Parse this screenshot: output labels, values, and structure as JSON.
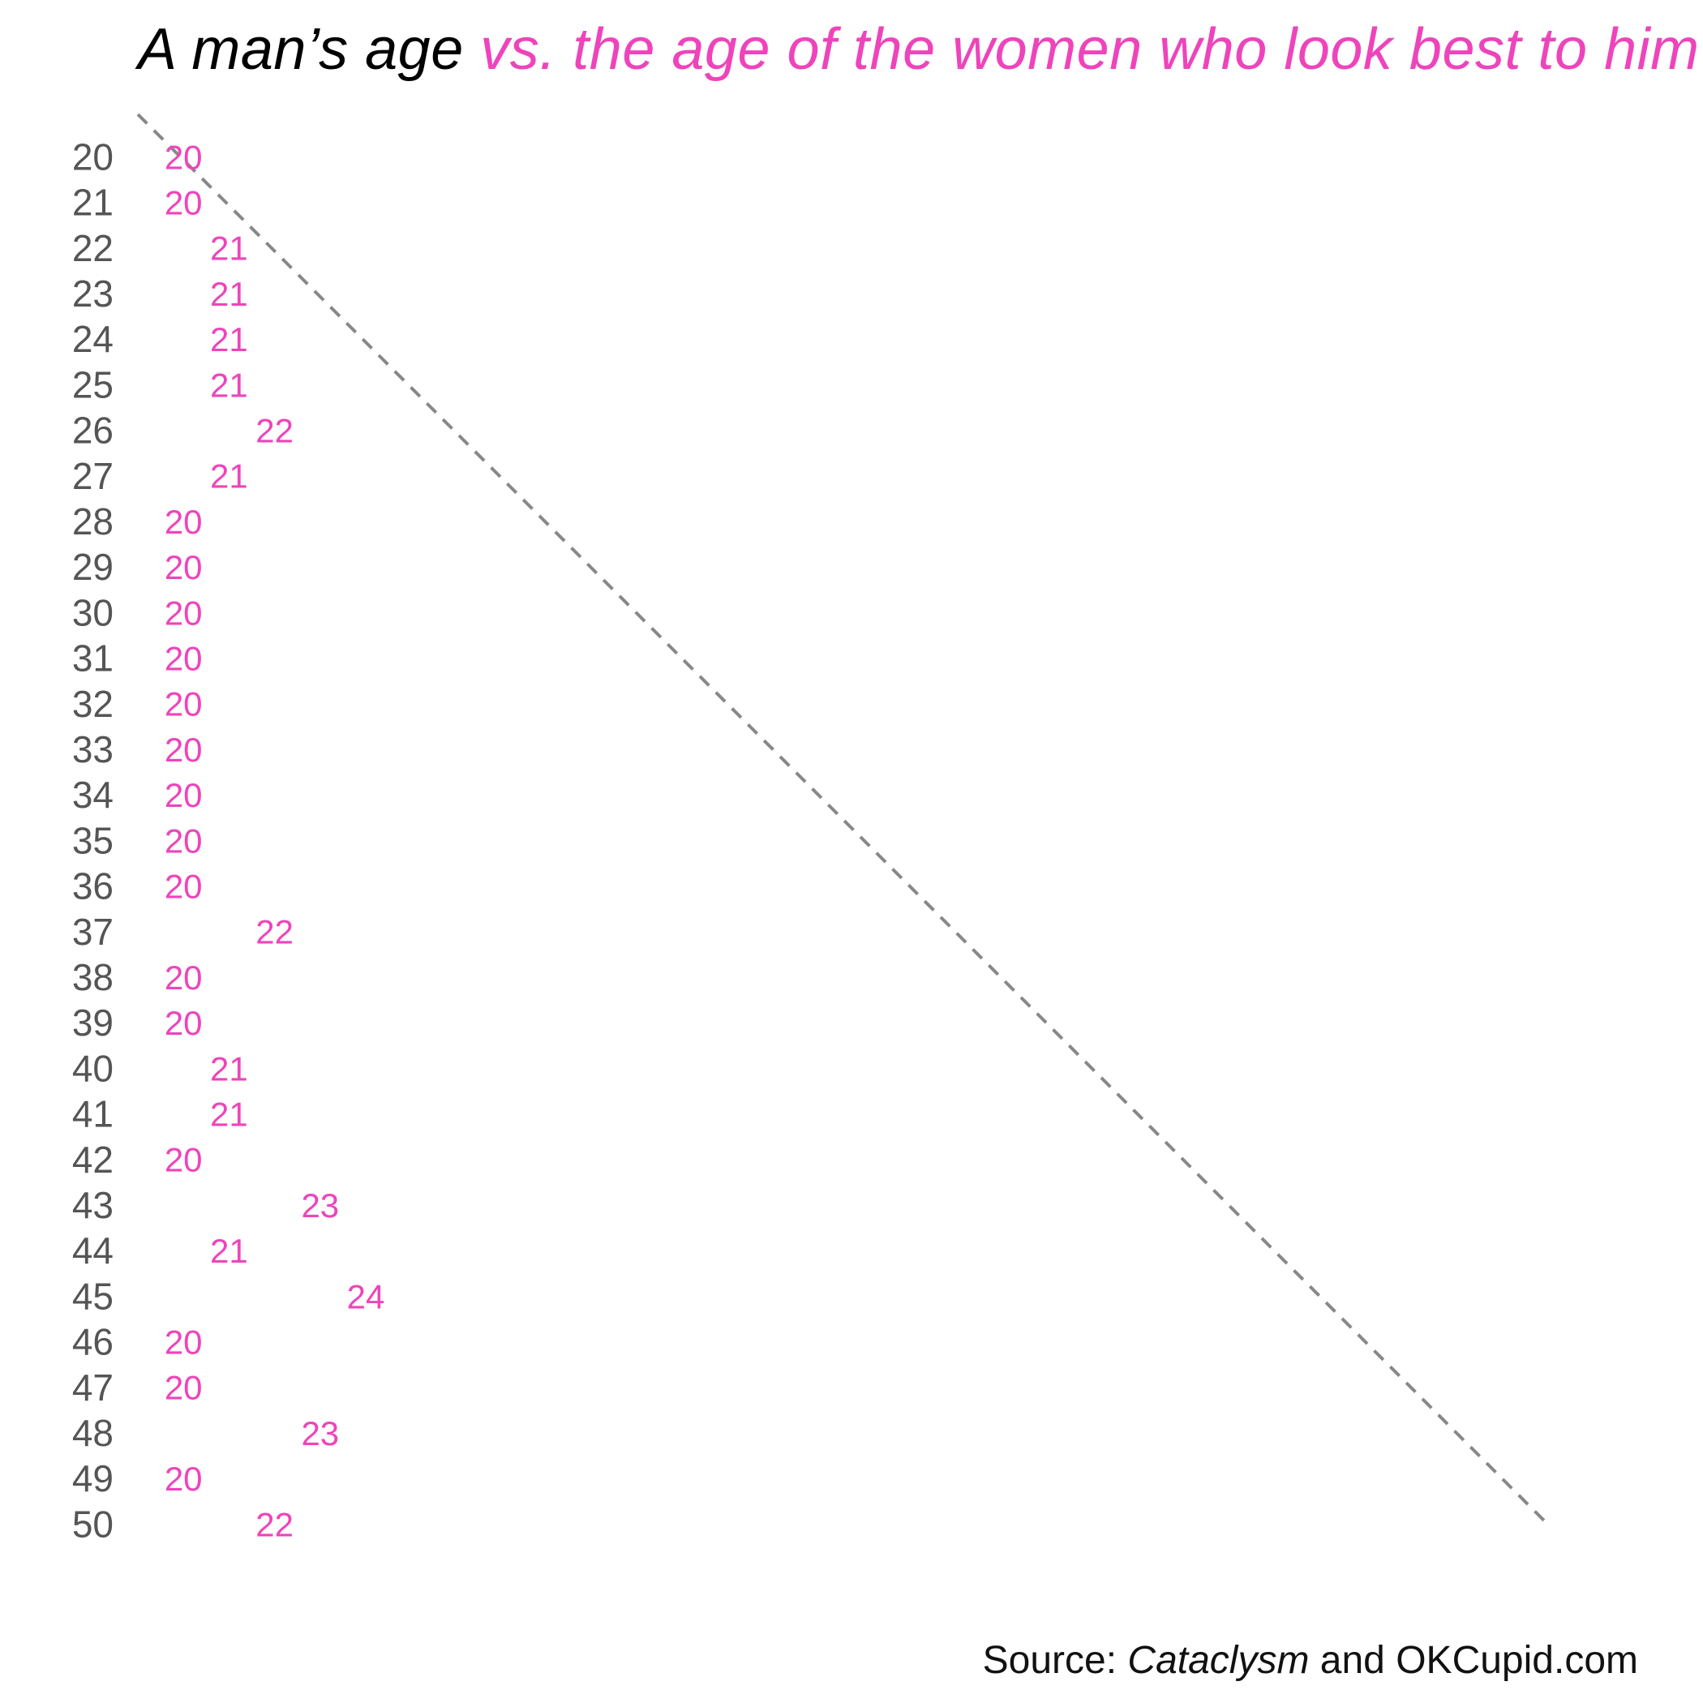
{
  "title": {
    "part1": "A man’s age",
    "part2": "vs. the age of the women who look best to him"
  },
  "source": {
    "prefix": "Source: ",
    "work": "Cataclysm",
    "suffix": " and OKCupid.com"
  },
  "colors": {
    "accent": "#ee44bb",
    "axis_text": "#555555",
    "diagonal": "#888888"
  },
  "chart_data": {
    "type": "scatter",
    "title": "A man’s age vs. the age of the women who look best to him",
    "xlabel": "",
    "ylabel": "",
    "x_description": "age of the women who look best to him",
    "y_description": "man's age",
    "xlim": [
      19,
      50
    ],
    "ylim": [
      19,
      50
    ],
    "reference_line": "y = x (dashed)",
    "grid": false,
    "points": [
      {
        "man_age": 20,
        "woman_age": 20
      },
      {
        "man_age": 21,
        "woman_age": 20
      },
      {
        "man_age": 22,
        "woman_age": 21
      },
      {
        "man_age": 23,
        "woman_age": 21
      },
      {
        "man_age": 24,
        "woman_age": 21
      },
      {
        "man_age": 25,
        "woman_age": 21
      },
      {
        "man_age": 26,
        "woman_age": 22
      },
      {
        "man_age": 27,
        "woman_age": 21
      },
      {
        "man_age": 28,
        "woman_age": 20
      },
      {
        "man_age": 29,
        "woman_age": 20
      },
      {
        "man_age": 30,
        "woman_age": 20
      },
      {
        "man_age": 31,
        "woman_age": 20
      },
      {
        "man_age": 32,
        "woman_age": 20
      },
      {
        "man_age": 33,
        "woman_age": 20
      },
      {
        "man_age": 34,
        "woman_age": 20
      },
      {
        "man_age": 35,
        "woman_age": 20
      },
      {
        "man_age": 36,
        "woman_age": 20
      },
      {
        "man_age": 37,
        "woman_age": 22
      },
      {
        "man_age": 38,
        "woman_age": 20
      },
      {
        "man_age": 39,
        "woman_age": 20
      },
      {
        "man_age": 40,
        "woman_age": 21
      },
      {
        "man_age": 41,
        "woman_age": 21
      },
      {
        "man_age": 42,
        "woman_age": 20
      },
      {
        "man_age": 43,
        "woman_age": 23
      },
      {
        "man_age": 44,
        "woman_age": 21
      },
      {
        "man_age": 45,
        "woman_age": 24
      },
      {
        "man_age": 46,
        "woman_age": 20
      },
      {
        "man_age": 47,
        "woman_age": 20
      },
      {
        "man_age": 48,
        "woman_age": 23
      },
      {
        "man_age": 49,
        "woman_age": 20
      },
      {
        "man_age": 50,
        "woman_age": 22
      }
    ]
  }
}
